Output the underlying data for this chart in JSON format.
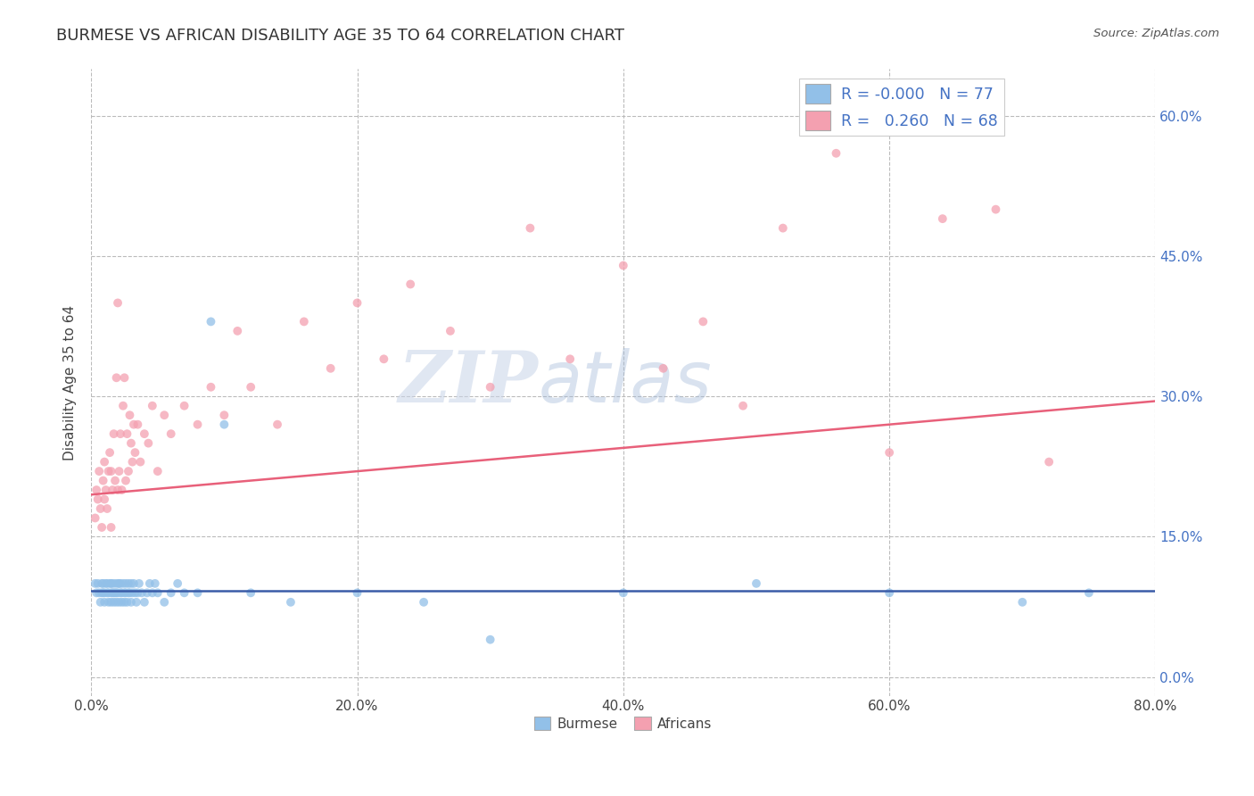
{
  "title": "BURMESE VS AFRICAN DISABILITY AGE 35 TO 64 CORRELATION CHART",
  "source_text": "Source: ZipAtlas.com",
  "ylabel": "Disability Age 35 to 64",
  "xlim": [
    0.0,
    0.8
  ],
  "ylim": [
    -0.02,
    0.65
  ],
  "xticks": [
    0.0,
    0.2,
    0.4,
    0.6,
    0.8
  ],
  "xtick_labels": [
    "0.0%",
    "20.0%",
    "40.0%",
    "60.0%",
    "80.0%"
  ],
  "yticks": [
    0.0,
    0.15,
    0.3,
    0.45,
    0.6
  ],
  "ytick_labels": [
    "0.0%",
    "15.0%",
    "30.0%",
    "45.0%",
    "60.0%"
  ],
  "burmese_color": "#92c0e8",
  "african_color": "#f4a0b0",
  "burmese_r": -0.0,
  "burmese_n": 77,
  "african_r": 0.26,
  "african_n": 68,
  "burmese_line_color": "#3a5ca8",
  "african_line_color": "#e8607a",
  "grid_color": "#bbbbbb",
  "background_color": "#ffffff",
  "watermark_text": "ZIPatlas",
  "burmese_line_y_start": 0.092,
  "burmese_line_y_end": 0.092,
  "african_line_y_start": 0.195,
  "african_line_y_end": 0.295,
  "burmese_scatter_x": [
    0.003,
    0.004,
    0.005,
    0.006,
    0.007,
    0.008,
    0.008,
    0.009,
    0.009,
    0.01,
    0.01,
    0.011,
    0.012,
    0.012,
    0.013,
    0.013,
    0.014,
    0.015,
    0.015,
    0.015,
    0.016,
    0.016,
    0.017,
    0.017,
    0.018,
    0.018,
    0.019,
    0.019,
    0.02,
    0.02,
    0.021,
    0.021,
    0.022,
    0.022,
    0.023,
    0.023,
    0.024,
    0.025,
    0.025,
    0.026,
    0.026,
    0.027,
    0.028,
    0.028,
    0.029,
    0.03,
    0.03,
    0.031,
    0.032,
    0.033,
    0.034,
    0.035,
    0.036,
    0.038,
    0.04,
    0.042,
    0.044,
    0.046,
    0.048,
    0.05,
    0.055,
    0.06,
    0.065,
    0.07,
    0.08,
    0.09,
    0.1,
    0.12,
    0.15,
    0.2,
    0.25,
    0.3,
    0.4,
    0.5,
    0.6,
    0.7,
    0.75
  ],
  "burmese_scatter_y": [
    0.1,
    0.09,
    0.1,
    0.09,
    0.08,
    0.09,
    0.1,
    0.09,
    0.1,
    0.08,
    0.09,
    0.1,
    0.09,
    0.1,
    0.08,
    0.09,
    0.1,
    0.08,
    0.09,
    0.1,
    0.09,
    0.1,
    0.08,
    0.09,
    0.1,
    0.09,
    0.08,
    0.09,
    0.1,
    0.09,
    0.08,
    0.1,
    0.09,
    0.1,
    0.08,
    0.09,
    0.1,
    0.08,
    0.09,
    0.1,
    0.09,
    0.08,
    0.09,
    0.1,
    0.09,
    0.08,
    0.1,
    0.09,
    0.1,
    0.09,
    0.08,
    0.09,
    0.1,
    0.09,
    0.08,
    0.09,
    0.1,
    0.09,
    0.1,
    0.09,
    0.08,
    0.09,
    0.1,
    0.09,
    0.09,
    0.38,
    0.27,
    0.09,
    0.08,
    0.09,
    0.08,
    0.04,
    0.09,
    0.1,
    0.09,
    0.08,
    0.09
  ],
  "african_scatter_x": [
    0.003,
    0.004,
    0.005,
    0.006,
    0.007,
    0.008,
    0.009,
    0.01,
    0.01,
    0.011,
    0.012,
    0.013,
    0.014,
    0.015,
    0.015,
    0.016,
    0.017,
    0.018,
    0.019,
    0.02,
    0.02,
    0.021,
    0.022,
    0.023,
    0.024,
    0.025,
    0.026,
    0.027,
    0.028,
    0.029,
    0.03,
    0.031,
    0.032,
    0.033,
    0.035,
    0.037,
    0.04,
    0.043,
    0.046,
    0.05,
    0.055,
    0.06,
    0.07,
    0.08,
    0.09,
    0.1,
    0.11,
    0.12,
    0.14,
    0.16,
    0.18,
    0.2,
    0.22,
    0.24,
    0.27,
    0.3,
    0.33,
    0.36,
    0.4,
    0.43,
    0.46,
    0.49,
    0.52,
    0.56,
    0.6,
    0.64,
    0.68,
    0.72
  ],
  "african_scatter_y": [
    0.17,
    0.2,
    0.19,
    0.22,
    0.18,
    0.16,
    0.21,
    0.19,
    0.23,
    0.2,
    0.18,
    0.22,
    0.24,
    0.16,
    0.22,
    0.2,
    0.26,
    0.21,
    0.32,
    0.2,
    0.4,
    0.22,
    0.26,
    0.2,
    0.29,
    0.32,
    0.21,
    0.26,
    0.22,
    0.28,
    0.25,
    0.23,
    0.27,
    0.24,
    0.27,
    0.23,
    0.26,
    0.25,
    0.29,
    0.22,
    0.28,
    0.26,
    0.29,
    0.27,
    0.31,
    0.28,
    0.37,
    0.31,
    0.27,
    0.38,
    0.33,
    0.4,
    0.34,
    0.42,
    0.37,
    0.31,
    0.48,
    0.34,
    0.44,
    0.33,
    0.38,
    0.29,
    0.48,
    0.56,
    0.24,
    0.49,
    0.5,
    0.23
  ]
}
